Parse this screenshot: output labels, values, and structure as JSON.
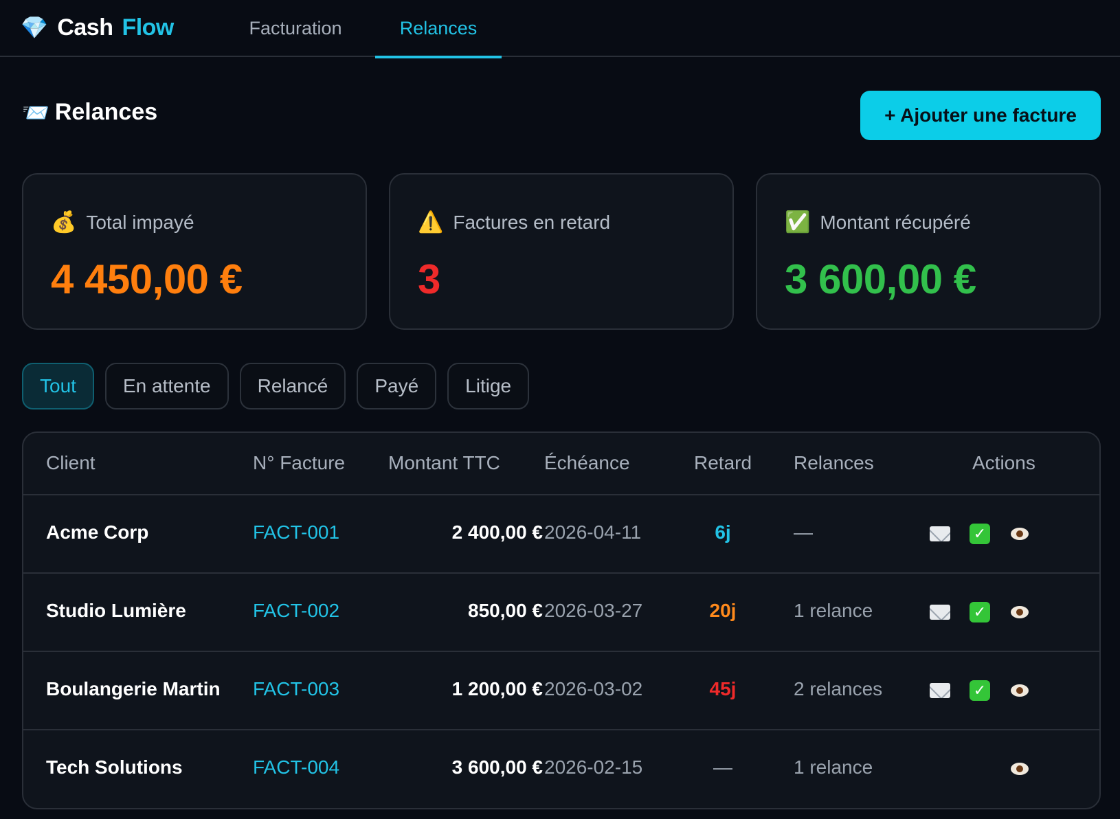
{
  "app": {
    "logo_icon": "gem-icon",
    "name_part1": "Cash",
    "name_part2": "Flow",
    "accent_color": "#22c3e6"
  },
  "nav": {
    "tabs": [
      {
        "label": "Facturation",
        "active": false
      },
      {
        "label": "Relances",
        "active": true
      }
    ]
  },
  "page": {
    "title_icon": "envelope-incoming-icon",
    "title": "Relances",
    "add_button_label": "+ Ajouter une facture"
  },
  "stats": [
    {
      "icon": "money-bag-icon",
      "label": "Total impayé",
      "value": "4 450,00 €",
      "color": "#ff7f0e"
    },
    {
      "icon": "warning-icon",
      "label": "Factures en retard",
      "value": "3",
      "color": "#ef2a2a"
    },
    {
      "icon": "check-mark-icon",
      "label": "Montant récupéré",
      "value": "3 600,00 €",
      "color": "#32c04c"
    }
  ],
  "filters": [
    {
      "label": "Tout",
      "active": true
    },
    {
      "label": "En attente",
      "active": false
    },
    {
      "label": "Relancé",
      "active": false
    },
    {
      "label": "Payé",
      "active": false
    },
    {
      "label": "Litige",
      "active": false
    }
  ],
  "table": {
    "headers": {
      "client": "Client",
      "number": "N° Facture",
      "amount": "Montant TTC",
      "due": "Échéance",
      "late": "Retard",
      "reminders": "Relances",
      "actions": "Actions"
    },
    "rows": [
      {
        "client": "Acme Corp",
        "number": "FACT-001",
        "amount": "2 400,00 €",
        "due": "2026-04-11",
        "late": "6j",
        "late_color": "#22c3e6",
        "reminders": "—",
        "actions": [
          "envelope-icon",
          "check-mark-icon",
          "eye-icon"
        ]
      },
      {
        "client": "Studio Lumière",
        "number": "FACT-002",
        "amount": "850,00 €",
        "due": "2026-03-27",
        "late": "20j",
        "late_color": "#ff8a1c",
        "reminders": "1 relance",
        "actions": [
          "envelope-icon",
          "check-mark-icon",
          "eye-icon"
        ]
      },
      {
        "client": "Boulangerie Martin",
        "number": "FACT-003",
        "amount": "1 200,00 €",
        "due": "2026-03-02",
        "late": "45j",
        "late_color": "#ef2a2a",
        "reminders": "2 relances",
        "actions": [
          "envelope-icon",
          "check-mark-icon",
          "eye-icon"
        ]
      },
      {
        "client": "Tech Solutions",
        "number": "FACT-004",
        "amount": "3 600,00 €",
        "due": "2026-02-15",
        "late": "—",
        "late_color": "#9aa3ae",
        "reminders": "1 relance",
        "actions": [
          "eye-icon"
        ]
      }
    ]
  }
}
